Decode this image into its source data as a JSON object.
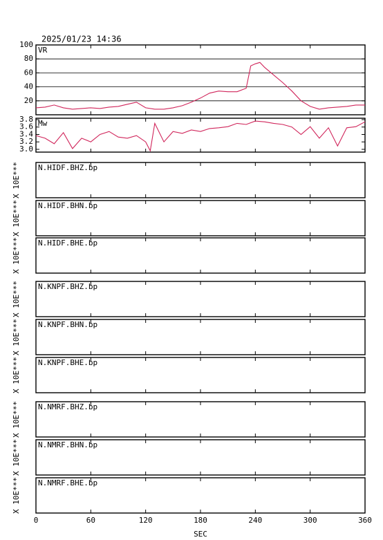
{
  "timestamp": "2025/01/23 14:36",
  "x_axis": {
    "label": "SEC",
    "xlim": [
      0,
      360
    ],
    "xticks": [
      0,
      60,
      120,
      180,
      240,
      300,
      360
    ]
  },
  "chart_data": [
    {
      "type": "line",
      "label": "VR",
      "color": "#d0245a",
      "grid": true,
      "ylim": [
        0,
        100
      ],
      "yticks": [
        20,
        40,
        60,
        80,
        100
      ],
      "x": [
        0,
        10,
        20,
        30,
        40,
        50,
        60,
        70,
        80,
        90,
        100,
        110,
        120,
        130,
        140,
        150,
        160,
        170,
        180,
        190,
        200,
        210,
        220,
        230,
        235,
        240,
        245,
        250,
        260,
        270,
        280,
        290,
        300,
        310,
        320,
        330,
        340,
        350,
        360
      ],
      "values": [
        10,
        11,
        14,
        10,
        8,
        9,
        10,
        9,
        11,
        12,
        15,
        18,
        10,
        8,
        8,
        10,
        13,
        18,
        24,
        31,
        34,
        33,
        33,
        38,
        70,
        73,
        75,
        68,
        57,
        46,
        34,
        20,
        12,
        8,
        10,
        11,
        12,
        14,
        14
      ]
    },
    {
      "type": "line",
      "label": "Mw",
      "color": "#d0245a",
      "grid": false,
      "ylim": [
        2.925,
        3.837
      ],
      "yticks": [
        {
          "value": 3,
          "label": "3.0"
        },
        3.2,
        3.4,
        3.6,
        3.8
      ],
      "x": [
        0,
        10,
        20,
        30,
        40,
        50,
        60,
        70,
        80,
        90,
        100,
        110,
        120,
        125,
        130,
        140,
        150,
        160,
        170,
        180,
        190,
        200,
        210,
        220,
        230,
        240,
        250,
        260,
        270,
        280,
        290,
        300,
        310,
        320,
        330,
        340,
        350,
        360
      ],
      "values": [
        3.37,
        3.3,
        3.15,
        3.45,
        3.02,
        3.3,
        3.2,
        3.4,
        3.48,
        3.33,
        3.3,
        3.37,
        3.2,
        2.96,
        3.7,
        3.2,
        3.48,
        3.43,
        3.52,
        3.48,
        3.56,
        3.58,
        3.61,
        3.7,
        3.67,
        3.76,
        3.74,
        3.7,
        3.67,
        3.6,
        3.4,
        3.61,
        3.3,
        3.58,
        3.09,
        3.58,
        3.61,
        3.74
      ]
    }
  ],
  "traces": [
    {
      "name": "N.HIDF.BHZ.bp",
      "unit": "X 10E***"
    },
    {
      "name": "N.HIDF.BHN.bp",
      "unit": "X 10E***"
    },
    {
      "name": "N.HIDF.BHE.bp",
      "unit": "X 10E***"
    },
    {
      "name": "N.KNPF.BHZ.bp",
      "unit": "X 10E***"
    },
    {
      "name": "N.KNPF.BHN.bp",
      "unit": "X 10E***"
    },
    {
      "name": "N.KNPF.BHE.bp",
      "unit": "X 10E***"
    },
    {
      "name": "N.NMRF.BHZ.bp",
      "unit": "X 10E***"
    },
    {
      "name": "N.NMRF.BHN.bp",
      "unit": "X 10E***"
    },
    {
      "name": "N.NMRF.BHE.bp",
      "unit": "X 10E***"
    }
  ]
}
